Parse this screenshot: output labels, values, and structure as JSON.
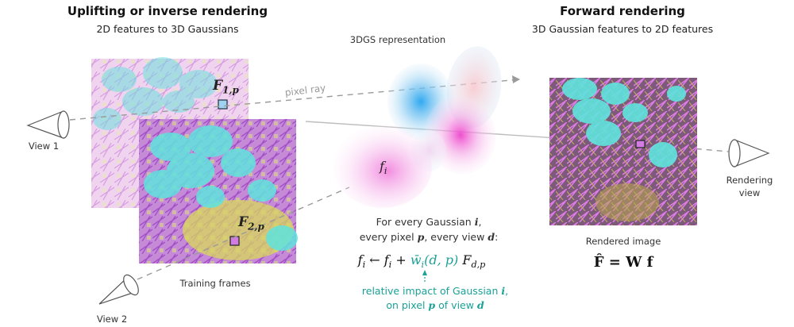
{
  "left_panel": {
    "title": "Uplifting or inverse rendering",
    "subtitle": "2D features to 3D Gaussians",
    "view1_label": "View 1",
    "view2_label": "View 2",
    "frames_label": "Training frames",
    "feature1_symbol": "F",
    "feature1_subscript": "1,p",
    "feature2_symbol": "F",
    "feature2_subscript": "2,p",
    "ray_label": "pixel ray"
  },
  "center_panel": {
    "representation_label": "3DGS representation",
    "gaussian_symbol": "f",
    "gaussian_subscript": "i",
    "rule_line1_prefix": "For every Gaussian ",
    "rule_line1_var": "i",
    "rule_line1_suffix": ",",
    "rule_line2_a": "every pixel ",
    "rule_line2_var1": "p",
    "rule_line2_b": ", every view ",
    "rule_line2_var2": "d",
    "rule_line2_c": ":",
    "update_lhs": "f",
    "update_lhs_sub": "i",
    "update_arrow": " ← ",
    "update_rhs_f": "f",
    "update_rhs_f_sub": "i",
    "update_plus": " + ",
    "update_weight": "w̄",
    "update_weight_sub": "i",
    "update_weight_args": "(d, p)",
    "update_feature": " F",
    "update_feature_sub": "d,p",
    "annotation_line1_prefix": "relative impact of Gaussian ",
    "annotation_line1_var": "i",
    "annotation_line1_suffix": ",",
    "annotation_line2_prefix": "on pixel ",
    "annotation_line2_var1": "p",
    "annotation_line2_mid": " of view ",
    "annotation_line2_var2": "d"
  },
  "right_panel": {
    "title": "Forward rendering",
    "subtitle": "3D Gaussian features to 2D features",
    "image_label": "Rendered image",
    "view_label_line1": "Rendering",
    "view_label_line2": "view",
    "equation": "F̂ = W f"
  },
  "colors": {
    "teal": "#1aa198",
    "pixel_blue": "#9fd3f0",
    "pixel_magenta": "#d27be0",
    "gaussian_blue": "#5cc0f2",
    "gaussian_pink": "#f06cd6"
  }
}
